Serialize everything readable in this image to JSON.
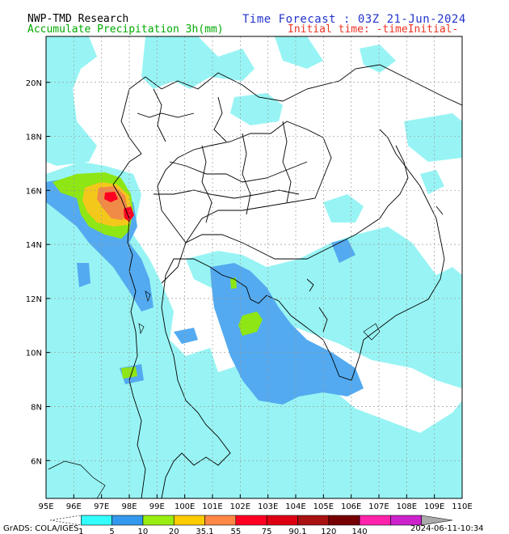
{
  "header": {
    "source": "NWP-TMD Research",
    "product": "Accumulate Precipitation 3h(mm)",
    "forecast": "Time Forecast : 03Z 21-Jun-2024",
    "init": "Initial time: -timeInitial-"
  },
  "axes": {
    "lon_labels": [
      "95E",
      "96E",
      "97E",
      "98E",
      "99E",
      "100E",
      "101E",
      "102E",
      "103E",
      "104E",
      "105E",
      "106E",
      "107E",
      "108E",
      "109E",
      "110E"
    ],
    "lat_labels": [
      "6N",
      "8N",
      "10N",
      "12N",
      "14N",
      "16N",
      "18N",
      "20N"
    ],
    "lon_values": [
      95,
      96,
      97,
      98,
      99,
      100,
      101,
      102,
      103,
      104,
      105,
      106,
      107,
      108,
      109,
      110
    ],
    "lat_values": [
      6,
      8,
      10,
      12,
      14,
      16,
      18,
      20
    ],
    "lon_range": [
      95,
      110
    ],
    "lat_range": [
      4.6,
      21.7
    ],
    "grid": "dotted"
  },
  "legend": {
    "labels": [
      "1",
      "5",
      "10",
      "20",
      "35.1",
      "55",
      "75",
      "90.1",
      "120",
      "140"
    ],
    "colors": [
      "#ffffff",
      "#33ffff",
      "#3399ee",
      "#99ee11",
      "#ffcc00",
      "#ff8844",
      "#ff0022",
      "#dd0011",
      "#aa1111",
      "#770000",
      "#ff22aa",
      "#cc22cc",
      "#aaaaaa"
    ]
  },
  "footer": {
    "brand": "GrADS: COLA/IGES",
    "date": "2024-06-11-10:34"
  },
  "colors": {
    "light_cyan": "#98f4f4",
    "blue": "#53aaf0",
    "green": "#8ee614",
    "yellow": "#f4c81a",
    "orange": "#f08a47",
    "red": "#ff0022"
  }
}
